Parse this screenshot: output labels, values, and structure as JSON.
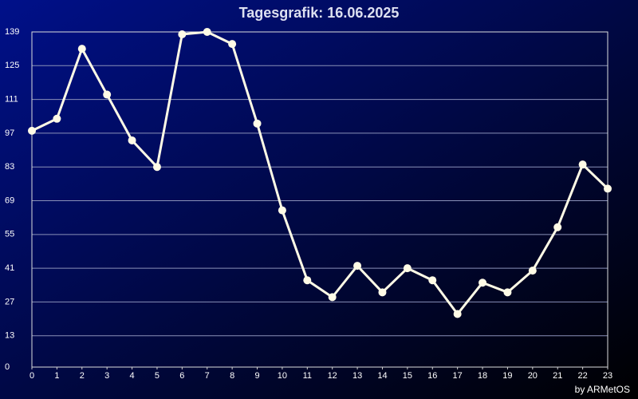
{
  "chart_data": {
    "type": "line",
    "title": "Tagesgrafik: 16.06.2025",
    "credit": "by ARMetOS",
    "x": [
      0,
      1,
      2,
      3,
      4,
      5,
      6,
      7,
      8,
      9,
      10,
      11,
      12,
      13,
      14,
      15,
      16,
      17,
      18,
      19,
      20,
      21,
      22,
      23
    ],
    "series": [
      {
        "name": null,
        "color": "#fffbe6",
        "values": [
          98,
          103,
          132,
          113,
          94,
          83,
          138,
          139,
          134,
          101,
          65,
          36,
          29,
          42,
          31,
          41,
          36,
          22,
          35,
          31,
          40,
          58,
          84,
          74
        ]
      }
    ],
    "xlim": [
      0,
      23
    ],
    "xticks": [
      0,
      1,
      2,
      3,
      4,
      5,
      6,
      7,
      8,
      9,
      10,
      11,
      12,
      13,
      14,
      15,
      16,
      17,
      18,
      19,
      20,
      21,
      22,
      23
    ],
    "ylim": [
      0,
      139
    ],
    "yticks": [
      0,
      13,
      27,
      41,
      55,
      69,
      83,
      97,
      111,
      125,
      139
    ],
    "grid": true
  }
}
